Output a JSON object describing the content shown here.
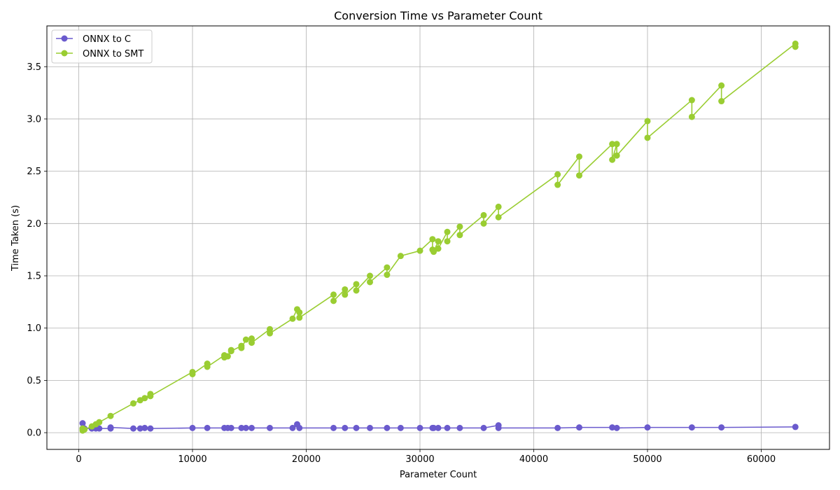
{
  "chart_data": {
    "type": "line",
    "title": "Conversion Time vs Parameter Count",
    "xlabel": "Parameter Count",
    "ylabel": "Time Taken (s)",
    "xlim": [
      -2800,
      66000
    ],
    "ylim": [
      -0.16,
      3.89
    ],
    "xticks": [
      0,
      10000,
      20000,
      30000,
      40000,
      50000,
      60000
    ],
    "yticks": [
      0.0,
      0.5,
      1.0,
      1.5,
      2.0,
      2.5,
      3.0,
      3.5
    ],
    "ytick_labels": [
      "0.0",
      "0.5",
      "1.0",
      "1.5",
      "2.0",
      "2.5",
      "3.0",
      "3.5"
    ],
    "grid": true,
    "legend_position": "top-left",
    "series": [
      {
        "name": "ONNX to C",
        "color": "#6a5acd",
        "x": [
          340,
          340,
          500,
          1150,
          1500,
          1800,
          2800,
          2800,
          4800,
          5400,
          5800,
          6300,
          10000,
          11300,
          12800,
          13100,
          13400,
          14300,
          14700,
          15200,
          16800,
          18800,
          19200,
          19400,
          22400,
          23400,
          24400,
          25600,
          27100,
          28300,
          30000,
          31100,
          31200,
          31600,
          32400,
          33500,
          35600,
          36900,
          36900,
          42100,
          44000,
          46900,
          47300,
          50000,
          53900,
          56500,
          63000
        ],
        "y": [
          0.09,
          0.04,
          0.04,
          0.04,
          0.04,
          0.04,
          0.04,
          0.05,
          0.04,
          0.04,
          0.045,
          0.04,
          0.045,
          0.045,
          0.045,
          0.045,
          0.045,
          0.045,
          0.045,
          0.045,
          0.045,
          0.045,
          0.08,
          0.045,
          0.045,
          0.045,
          0.045,
          0.045,
          0.045,
          0.045,
          0.045,
          0.045,
          0.045,
          0.045,
          0.045,
          0.045,
          0.045,
          0.07,
          0.045,
          0.045,
          0.05,
          0.05,
          0.045,
          0.05,
          0.05,
          0.05,
          0.055
        ]
      },
      {
        "name": "ONNX to SMT",
        "color": "#9acd32",
        "x": [
          340,
          340,
          500,
          1150,
          1500,
          1800,
          2800,
          4800,
          5400,
          5800,
          6300,
          6300,
          10000,
          10000,
          11300,
          11300,
          12800,
          12800,
          13100,
          13400,
          13400,
          14300,
          14300,
          14700,
          15200,
          15200,
          16800,
          16800,
          18800,
          19200,
          19400,
          19400,
          22400,
          22400,
          23400,
          23400,
          24400,
          24400,
          25600,
          25600,
          27100,
          27100,
          28300,
          30000,
          31100,
          31100,
          31200,
          31600,
          31600,
          32400,
          32400,
          33500,
          33500,
          35600,
          35600,
          36900,
          36900,
          42100,
          42100,
          44000,
          44000,
          46900,
          46900,
          47300,
          47300,
          50000,
          50000,
          53900,
          53900,
          56500,
          56500,
          63000,
          63000
        ],
        "y": [
          0.04,
          0.02,
          0.03,
          0.06,
          0.08,
          0.1,
          0.16,
          0.28,
          0.31,
          0.33,
          0.37,
          0.35,
          0.58,
          0.56,
          0.66,
          0.63,
          0.74,
          0.72,
          0.73,
          0.79,
          0.78,
          0.83,
          0.81,
          0.89,
          0.9,
          0.86,
          0.99,
          0.95,
          1.09,
          1.18,
          1.15,
          1.1,
          1.32,
          1.26,
          1.37,
          1.32,
          1.42,
          1.36,
          1.5,
          1.44,
          1.58,
          1.51,
          1.69,
          1.74,
          1.85,
          1.75,
          1.73,
          1.83,
          1.76,
          1.92,
          1.83,
          1.97,
          1.89,
          2.08,
          2.0,
          2.16,
          2.06,
          2.47,
          2.37,
          2.64,
          2.46,
          2.76,
          2.61,
          2.76,
          2.65,
          2.98,
          2.82,
          3.18,
          3.02,
          3.32,
          3.17,
          3.72,
          3.69
        ]
      }
    ]
  }
}
